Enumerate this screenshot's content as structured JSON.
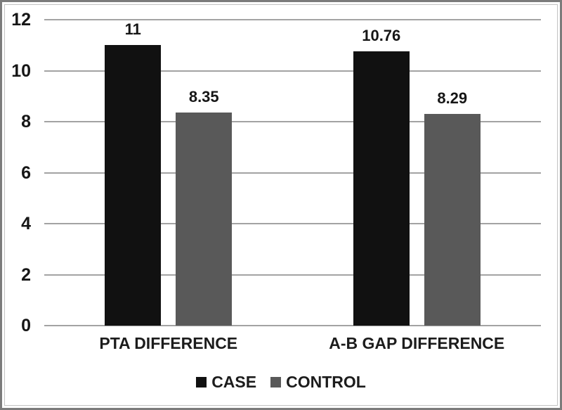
{
  "figure": {
    "background": "#ffffff",
    "outer_border_color": "#7b7b7b",
    "inner_border_color": "#c3c3c3"
  },
  "chart_data": {
    "type": "bar",
    "title": "",
    "xlabel": "",
    "ylabel": "",
    "categories": [
      "PTA DIFFERENCE",
      "A-B GAP DIFFERENCE"
    ],
    "series": [
      {
        "name": "CASE",
        "color": "#111111",
        "values": [
          11,
          10.76
        ],
        "labels": [
          "11",
          "10.76"
        ]
      },
      {
        "name": "CONTROL",
        "color": "#595959",
        "values": [
          8.35,
          8.29
        ],
        "labels": [
          "8.35",
          "8.29"
        ]
      }
    ],
    "ylim": [
      0,
      12
    ],
    "yticks": [
      0,
      2,
      4,
      6,
      8,
      10,
      12
    ],
    "grid": true,
    "gridline_color": "#a3a3a3",
    "legend_position": "bottom"
  }
}
